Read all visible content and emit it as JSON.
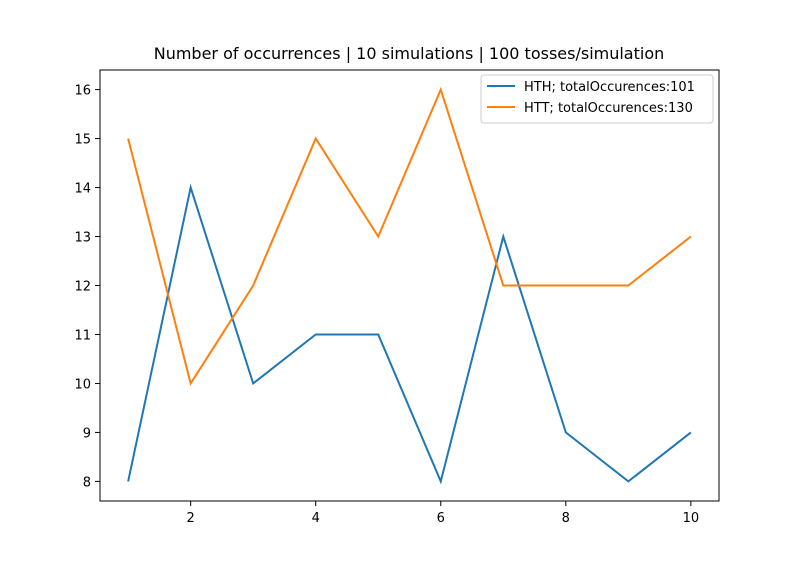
{
  "chart_data": {
    "type": "line",
    "title": "Number of occurrences | 10 simulations | 100 tosses/simulation",
    "xlabel": "",
    "ylabel": "",
    "x": [
      1,
      2,
      3,
      4,
      5,
      6,
      7,
      8,
      9,
      10
    ],
    "xlim": [
      0.55,
      10.45
    ],
    "ylim": [
      7.6,
      16.4
    ],
    "xticks": [
      2,
      4,
      6,
      8,
      10
    ],
    "yticks": [
      8,
      9,
      10,
      11,
      12,
      13,
      14,
      15,
      16
    ],
    "grid": false,
    "legend_position": "top-right",
    "series": [
      {
        "name": "HTH; totalOccurences:101",
        "color": "#1f77b4",
        "values": [
          8,
          14,
          10,
          11,
          11,
          8,
          13,
          9,
          8,
          9
        ]
      },
      {
        "name": "HTT; totalOccurences:130",
        "color": "#ff7f0e",
        "values": [
          15,
          10,
          12,
          15,
          13,
          16,
          12,
          12,
          12,
          13
        ]
      }
    ]
  }
}
